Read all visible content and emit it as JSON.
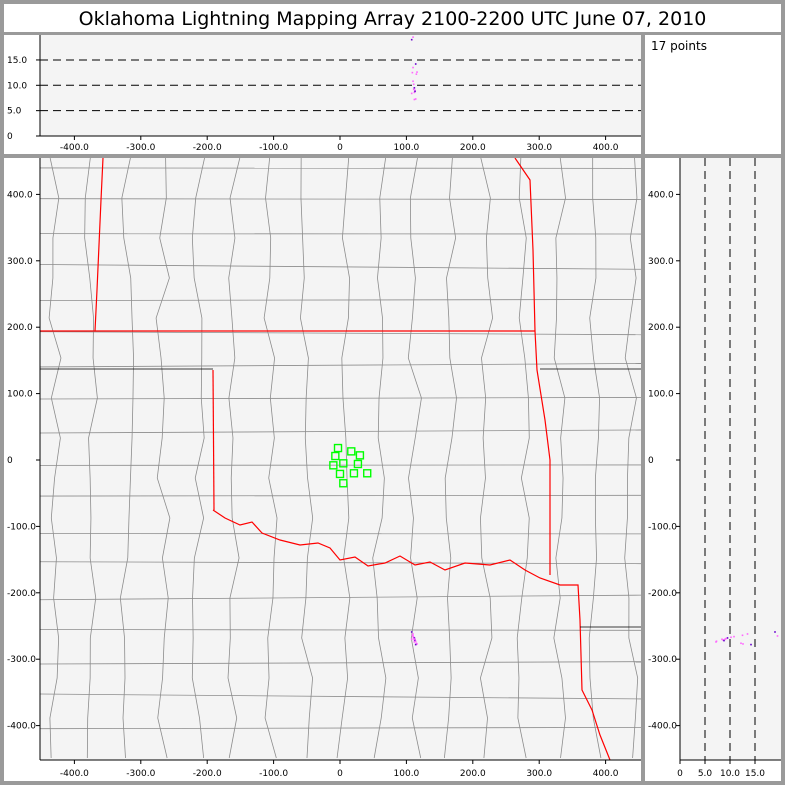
{
  "title": "Oklahoma Lightning Mapping Array   2100-2200 UTC  June 07, 2010",
  "info": {
    "points_label": "17 points"
  },
  "colors": {
    "frame": "#9a9a9a",
    "plot_bg": "#f4f4f4",
    "state_border": "#ff0000",
    "county_border": "#8c8c8c",
    "station": "#00ff00",
    "source": "#ff66ff",
    "gridline": "#000000"
  },
  "chart_data": {
    "type": "scatter",
    "plan_view": {
      "x_ticks": [
        -400,
        -300,
        -200,
        -100,
        0,
        100,
        200,
        300,
        400
      ],
      "x_tick_labels": [
        "-400.0",
        "-300.0",
        "-200.0",
        "-100.0",
        "0",
        "100.0",
        "200.0",
        "300.0",
        "400.0"
      ],
      "y_ticks": [
        400,
        300,
        200,
        100,
        0,
        -100,
        -200,
        -300,
        -400
      ],
      "y_tick_labels": [
        "400.0",
        "300.0",
        "200.0",
        "100.0",
        "0",
        "-100.0",
        "-200.0",
        "-300.0",
        "-400.0"
      ],
      "xlim": [
        -455,
        450
      ],
      "ylim": [
        -450,
        455
      ]
    },
    "altitude_axis": {
      "ticks": [
        0,
        5,
        10,
        15
      ],
      "tick_labels": [
        "0",
        "5.0",
        "10.0",
        "15.0"
      ],
      "lim": [
        0,
        20
      ],
      "dashed_gridlines": [
        5,
        10,
        15
      ]
    },
    "stations": [
      {
        "x": -3,
        "y": 18
      },
      {
        "x": 17,
        "y": 13
      },
      {
        "x": -7,
        "y": 6
      },
      {
        "x": 30,
        "y": 7
      },
      {
        "x": -10,
        "y": -8
      },
      {
        "x": 5,
        "y": -5
      },
      {
        "x": 27,
        "y": -6
      },
      {
        "x": 0,
        "y": -21
      },
      {
        "x": 21,
        "y": -20
      },
      {
        "x": 41,
        "y": -20
      },
      {
        "x": 5,
        "y": -35
      }
    ],
    "sources": [
      {
        "x": 108,
        "y": -259,
        "z": 19.0
      },
      {
        "x": 110,
        "y": -262,
        "z": 13.5
      },
      {
        "x": 109,
        "y": -264,
        "z": 12.5
      },
      {
        "x": 110,
        "y": -266,
        "z": 10.8
      },
      {
        "x": 111,
        "y": -267,
        "z": 10.2
      },
      {
        "x": 112,
        "y": -268,
        "z": 9.5
      },
      {
        "x": 111,
        "y": -269,
        "z": 9.2
      },
      {
        "x": 113,
        "y": -270,
        "z": 9.0
      },
      {
        "x": 112,
        "y": -271,
        "z": 8.6
      },
      {
        "x": 108,
        "y": -270,
        "z": 8.4
      },
      {
        "x": 113,
        "y": -272,
        "z": 8.8
      },
      {
        "x": 114,
        "y": -273,
        "z": 7.3
      },
      {
        "x": 112,
        "y": -274,
        "z": 7.2
      },
      {
        "x": 115,
        "y": -276,
        "z": 12.2
      },
      {
        "x": 116,
        "y": -277,
        "z": 12.6
      },
      {
        "x": 114,
        "y": -278,
        "z": 14.2
      },
      {
        "x": 110,
        "y": -265,
        "z": 19.5
      }
    ]
  }
}
